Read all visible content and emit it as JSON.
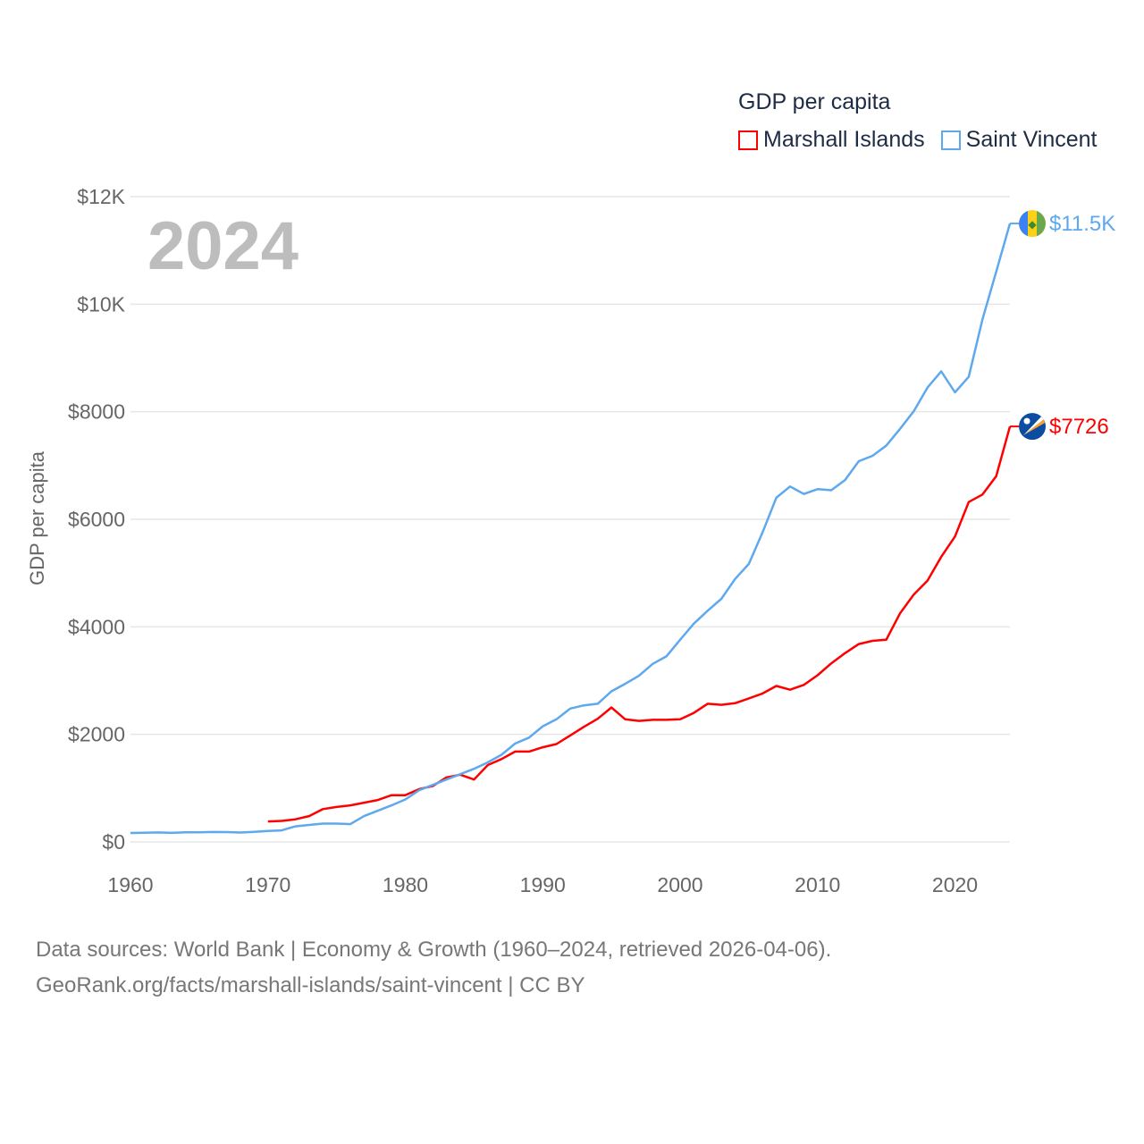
{
  "chart_data": {
    "type": "line",
    "title": "GDP per capita",
    "current_year_label": "2024",
    "xlabel": "",
    "ylabel": "GDP per capita",
    "xlim": [
      1960,
      2024
    ],
    "ylim": [
      0,
      12000
    ],
    "x_ticks": [
      "1960",
      "1970",
      "1980",
      "1990",
      "2000",
      "2010",
      "2020"
    ],
    "y_ticks": [
      {
        "value": 0,
        "label": "$0"
      },
      {
        "value": 2000,
        "label": "$2000"
      },
      {
        "value": 4000,
        "label": "$4000"
      },
      {
        "value": 6000,
        "label": "$6000"
      },
      {
        "value": 8000,
        "label": "$8000"
      },
      {
        "value": 10000,
        "label": "$10K"
      },
      {
        "value": 12000,
        "label": "$12K"
      }
    ],
    "grid": true,
    "legend_placement": "top-right",
    "series": [
      {
        "name": "Marshall Islands",
        "color": "#ff0000",
        "end_label": "$7726",
        "start_year": 1970,
        "values": [
          380,
          390,
          420,
          480,
          610,
          650,
          680,
          730,
          780,
          870,
          870,
          980,
          1040,
          1200,
          1250,
          1160,
          1430,
          1540,
          1680,
          1680,
          1760,
          1820,
          1980,
          2140,
          2290,
          2500,
          2280,
          2250,
          2270,
          2270,
          2280,
          2400,
          2570,
          2550,
          2580,
          2670,
          2760,
          2900,
          2830,
          2920,
          3100,
          3320,
          3510,
          3680,
          3740,
          3760,
          4250,
          4600,
          4860,
          5300,
          5680,
          6320,
          6460,
          6800,
          7726
        ]
      },
      {
        "name": "Saint Vincent",
        "color": "#5ea8ee",
        "end_label": "$11.5K",
        "start_year": 1960,
        "values": [
          166,
          172,
          176,
          168,
          178,
          180,
          185,
          182,
          175,
          188,
          203,
          215,
          290,
          315,
          340,
          340,
          330,
          480,
          580,
          680,
          790,
          960,
          1060,
          1160,
          1260,
          1360,
          1480,
          1620,
          1830,
          1940,
          2150,
          2280,
          2480,
          2540,
          2570,
          2800,
          2940,
          3090,
          3310,
          3450,
          3760,
          4060,
          4300,
          4520,
          4890,
          5170,
          5760,
          6400,
          6610,
          6470,
          6560,
          6540,
          6730,
          7080,
          7180,
          7370,
          7680,
          8010,
          8450,
          8750,
          8360,
          8650,
          9720,
          10600,
          11500
        ]
      }
    ]
  },
  "footer": {
    "line1": "Data sources: World Bank | Economy & Growth (1960–2024, retrieved 2026-04-06).",
    "line2": "GeoRank.org/facts/marshall-islands/saint-vincent | CC BY"
  }
}
